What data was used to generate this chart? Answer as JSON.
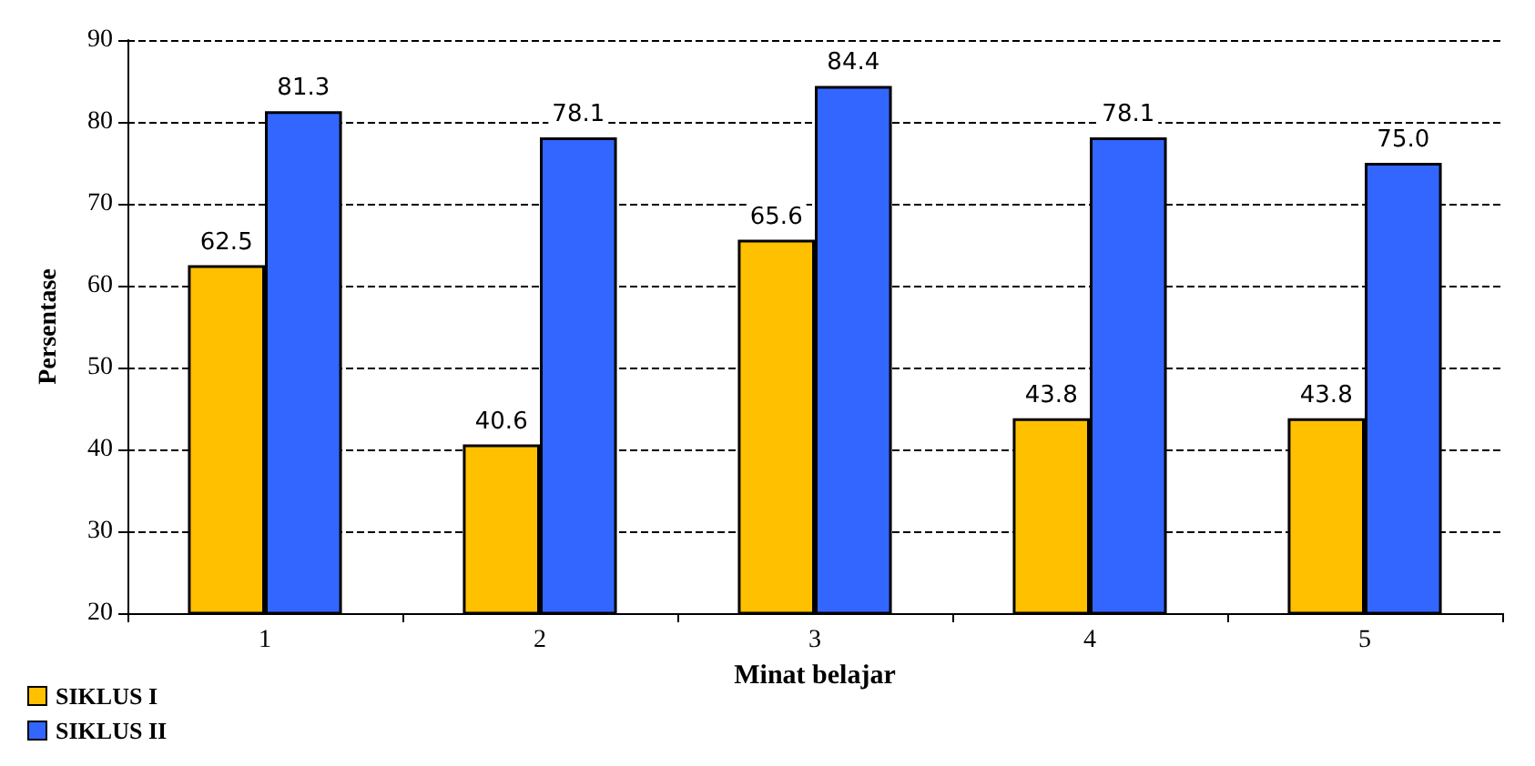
{
  "chart_data": {
    "type": "bar",
    "xlabel": "Minat belajar",
    "ylabel": "Persentase",
    "categories": [
      "1",
      "2",
      "3",
      "4",
      "5"
    ],
    "series": [
      {
        "name": "SIKLUS I",
        "color": "#ffc000",
        "values": [
          62.5,
          40.6,
          65.6,
          43.8,
          43.8
        ],
        "value_labels": [
          "62.5",
          "40.6",
          "65.6",
          "43.8",
          "43.8"
        ]
      },
      {
        "name": "SIKLUS II",
        "color": "#3366ff",
        "values": [
          81.3,
          78.1,
          84.4,
          78.1,
          75.0
        ],
        "value_labels": [
          "81.3",
          "78.1",
          "84.4",
          "78.1",
          "75.0"
        ]
      }
    ],
    "ylim": [
      20,
      90
    ],
    "yticks": [
      20,
      30,
      40,
      50,
      60,
      70,
      80,
      90
    ],
    "grid": "y",
    "legend": "bottom left"
  }
}
